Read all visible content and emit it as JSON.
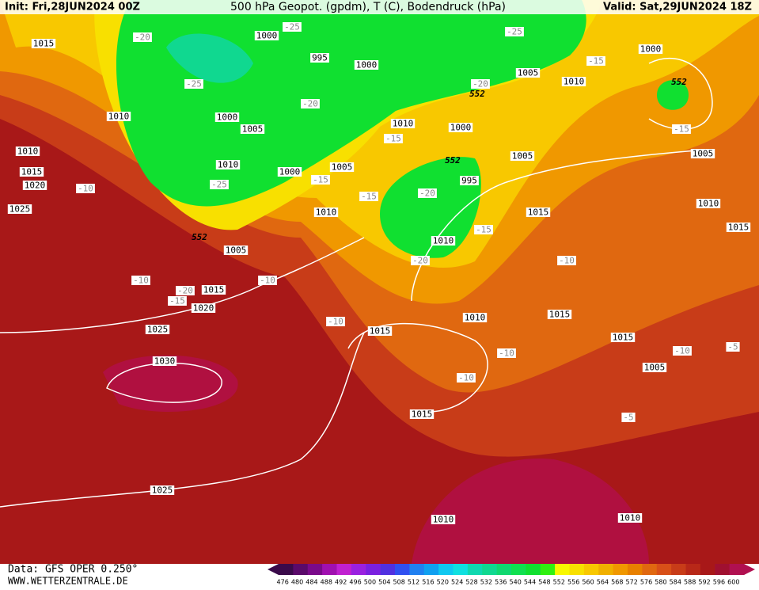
{
  "header": {
    "init": "Init: Fri,28JUN2024 00Z",
    "title": "500 hPa Geopot. (gpdm), T (C), Bodendruck (hPa)",
    "valid": "Valid: Sat,29JUN2024 18Z"
  },
  "footer": {
    "data": "Data: GFS OPER 0.250°",
    "site": "WWW.WETTERZENTRALE.DE"
  },
  "colorbar": {
    "labels": [
      476,
      480,
      484,
      488,
      492,
      496,
      500,
      504,
      508,
      512,
      516,
      520,
      524,
      528,
      532,
      536,
      540,
      544,
      548,
      552,
      556,
      560,
      564,
      568,
      572,
      576,
      580,
      584,
      588,
      592,
      596,
      600
    ],
    "colors": [
      "#3a0a4a",
      "#5a0a6a",
      "#7a0a8a",
      "#a010b0",
      "#c020d0",
      "#9a20e0",
      "#7a20e0",
      "#5030e0",
      "#3050f0",
      "#2080f0",
      "#10a0f0",
      "#10c8f0",
      "#10e0e0",
      "#10d8b0",
      "#10d890",
      "#10d870",
      "#10e050",
      "#10e030",
      "#30f010",
      "#f8f800",
      "#f8e000",
      "#f8c800",
      "#f0b000",
      "#f09800",
      "#e88000",
      "#e06810",
      "#d85018",
      "#c83c18",
      "#b82818",
      "#a81818",
      "#a01030",
      "#b01050"
    ]
  },
  "map": {
    "isobar_labels": [
      1015,
      1000,
      995,
      1000,
      1005,
      1010,
      1000,
      1010,
      1000,
      1005,
      1010,
      1000,
      1010,
      1015,
      1020,
      1025,
      1010,
      1000,
      1005,
      995,
      1005,
      1005,
      1010,
      1010,
      1015,
      1015,
      1010,
      1005,
      1015,
      1020,
      1025,
      1015,
      1010,
      1015,
      1015,
      1030,
      1005,
      1015,
      1025,
      1010,
      1010
    ],
    "temperature_labels": [
      -20,
      -25,
      -25,
      -25,
      -20,
      -20,
      -15,
      -15,
      -15,
      -15,
      -10,
      -25,
      -20,
      -15,
      -15,
      -10,
      -10,
      -20,
      -15,
      -10,
      -20,
      -10,
      -10,
      -10,
      -10,
      -5,
      -5
    ],
    "geopotential_labels": [
      552,
      552,
      552,
      552
    ]
  }
}
